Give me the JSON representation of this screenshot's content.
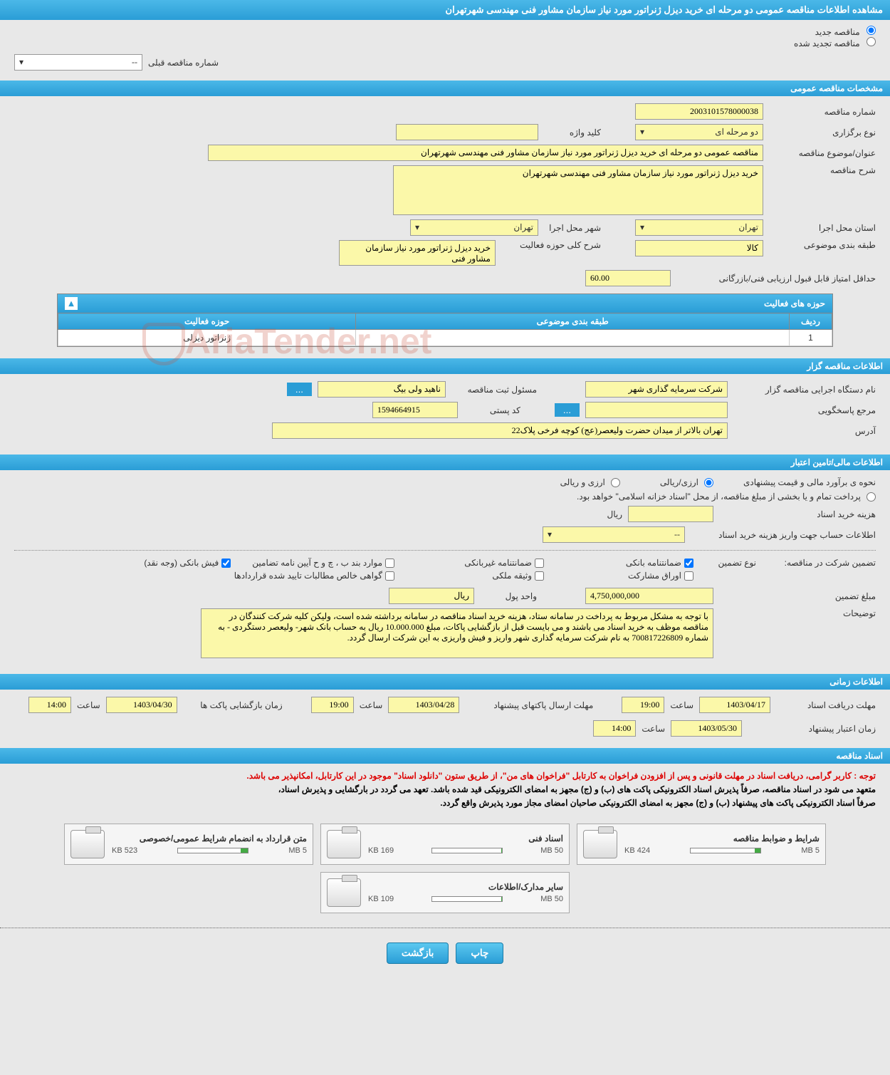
{
  "header": {
    "title": "مشاهده اطلاعات مناقصه عمومی دو مرحله ای خرید دیزل ژنراتور مورد نیاز سازمان مشاور فنی مهندسی شهرتهران"
  },
  "radio": {
    "new_tender": "مناقصه جدید",
    "renewed_tender": "مناقصه تجدید شده",
    "prev_number_label": "شماره مناقصه قبلی",
    "prev_number_value": "--"
  },
  "sections": {
    "general": "مشخصات مناقصه عمومی",
    "organizer": "اطلاعات مناقصه گزار",
    "financial": "اطلاعات مالی/تامین اعتبار",
    "timing": "اطلاعات زمانی",
    "documents": "اسناد مناقصه"
  },
  "general": {
    "tender_number_label": "شماره مناقصه",
    "tender_number": "2003101578000038",
    "type_label": "نوع برگزاری",
    "type": "دو مرحله ای",
    "keyword_label": "کلید واژه",
    "keyword": "",
    "subject_label": "عنوان/موضوع مناقصه",
    "subject": "مناقصه عمومی دو مرحله ای خرید دیزل ژنراتور مورد نیاز سازمان مشاور فنی مهندسی شهرتهران",
    "desc_label": "شرح مناقصه",
    "desc": "خرید دیزل ژنراتور مورد نیاز سازمان مشاور فنی مهندسی شهرتهران",
    "province_label": "استان محل اجرا",
    "province": "تهران",
    "city_label": "شهر محل اجرا",
    "city": "تهران",
    "category_label": "طبقه بندی موضوعی",
    "category": "کالا",
    "activity_desc_label": "شرح کلی حوزه فعالیت",
    "activity_desc": "خرید دیزل ژنراتور مورد نیاز سازمان مشاور فنی",
    "min_score_label": "حداقل امتیاز قابل قبول ارزیابی فنی/بازرگانی",
    "min_score": "60.00"
  },
  "activity_table": {
    "title": "حوزه های فعالیت",
    "columns": [
      "ردیف",
      "طبقه بندی موضوعی",
      "حوزه فعالیت"
    ],
    "row": {
      "num": "1",
      "category": "",
      "activity": "ژنراتور دیزلی"
    }
  },
  "organizer": {
    "exec_label": "نام دستگاه اجرایی مناقصه گزار",
    "exec": "شرکت سرمایه گذاری شهر",
    "officer_label": "مسئول ثبت مناقصه",
    "officer": "ناهید ولی بیگ",
    "contact_label": "مرجع پاسخگویی",
    "contact": "",
    "postal_label": "کد پستی",
    "postal": "1594664915",
    "address_label": "آدرس",
    "address": "تهران بالاتر از میدان حضرت ولیعصر(عج) کوچه فرخی پلاک22",
    "dots_btn": "..."
  },
  "financial": {
    "est_label": "نحوه ی برآورد مالی و قیمت پیشنهادی",
    "opt_rial": "ارزی/ریالی",
    "opt_forex": "ارزی و ریالی",
    "treasury_radio": "پرداخت تمام و یا بخشی از مبلغ مناقصه، از محل \"اسناد خزانه اسلامی\" خواهد بود.",
    "purchase_label": "هزینه خرید اسناد",
    "purchase_unit": "ریال",
    "account_label": "اطلاعات حساب جهت واریز هزینه خرید اسناد",
    "account_value": "--",
    "guarantee_in_tender_label": "تضمین شرکت در مناقصه:",
    "guarantee_type_label": "نوع تضمین",
    "guarantee_opts": {
      "bank_guarantee": "ضمانتنامه بانکی",
      "nonbank_guarantee": "ضمانتنامه غیربانکی",
      "cases": "موارد بند ب ، چ و ح آیین نامه تضامین",
      "cash": "فیش بانکی (وجه نقد)",
      "bonds": "اوراق مشارکت",
      "property": "وثیقه ملکی",
      "receivables": "گواهی خالص مطالبات تایید شده قراردادها"
    },
    "guarantee_amount_label": "مبلغ تضمین",
    "guarantee_amount": "4,750,000,000",
    "currency_label": "واحد پول",
    "currency": "ریال",
    "notes_label": "توضیحات",
    "notes": "با توجه به مشکل مربوط به پرداخت در سامانه ستاد، هزینه خرید اسناد مناقصه در سامانه برداشته شده است، ولیکن کلیه شرکت کنندگان در مناقصه موظف به خرید اسناد می باشند و می بایست قبل از بازگشایی پاکات، مبلغ 10.000.000 ریال به حساب بانک شهر- ولیعصر دستگردی - به شماره 700817226809 به نام شرکت سرمایه گذاری شهر واریز و فیش واریزی به این شرکت ارسال گردد."
  },
  "timing": {
    "receive_doc_label": "مهلت دریافت اسناد",
    "receive_doc_date": "1403/04/17",
    "receive_doc_time": "19:00",
    "send_env_label": "مهلت ارسال پاکتهای پیشنهاد",
    "send_env_date": "1403/04/28",
    "send_env_time": "19:00",
    "open_env_label": "زمان بازگشایی پاکت ها",
    "open_env_date": "1403/04/30",
    "open_env_time": "14:00",
    "validity_label": "زمان اعتبار پیشنهاد",
    "validity_date": "1403/05/30",
    "validity_time": "14:00",
    "hour_label": "ساعت"
  },
  "documents": {
    "notice_red": "توجه : کاربر گرامی، دریافت اسناد در مهلت قانونی و پس از افزودن فراخوان به کارتابل \"فراخوان های من\"، از طریق ستون \"دانلود اسناد\" موجود در این کارتابل، امکانپذیر می باشد.",
    "notice_black1": "متعهد می شود در اسناد مناقصه، صرفاً پذیرش اسناد الکترونیکی پاکت های (ب) و (ج) مجهز به امضای الکترونیکی قید شده باشد. تعهد می گردد در بارگشایی و پذیرش اسناد،",
    "notice_black2": "صرفاً اسناد الکترونیکی پاکت های پیشنهاد (ب) و (ج) مجهز به امضای الکترونیکی صاحبان امضای مجاز مورد پذیرش واقع گردد.",
    "cards": [
      {
        "title": "شرایط و ضوابط مناقصه",
        "used": "424 KB",
        "max": "5 MB",
        "pct": 8
      },
      {
        "title": "اسناد فنی",
        "used": "169 KB",
        "max": "50 MB",
        "pct": 1
      },
      {
        "title": "متن قرارداد به انضمام شرایط عمومی/خصوصی",
        "used": "523 KB",
        "max": "5 MB",
        "pct": 10
      },
      {
        "title": "سایر مدارک/اطلاعات",
        "used": "109 KB",
        "max": "50 MB",
        "pct": 1
      }
    ]
  },
  "buttons": {
    "print": "چاپ",
    "back": "بازگشت"
  },
  "watermark": "AriaTender.net"
}
